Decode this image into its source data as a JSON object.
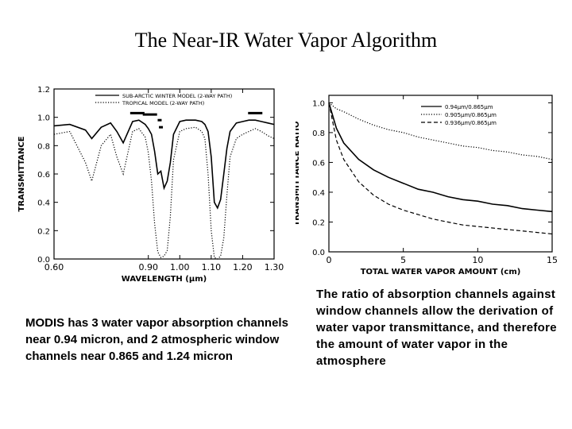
{
  "slide": {
    "title": "The Near-IR Water Vapor Algorithm",
    "caption_left": "MODIS has 3 water vapor absorption channels near 0.94 micron, and 2 atmospheric window channels near 0.865 and 1.24 micron",
    "caption_right": "The ratio of absorption channels against window channels allow the derivation of water vapor transmittance, and therefore the amount of water vapor in the atmosphere"
  },
  "chart_data": [
    {
      "type": "line",
      "xlabel": "WAVELENGTH (μm)",
      "ylabel": "TRANSMITTANCE",
      "xlim": [
        0.6,
        1.3
      ],
      "ylim": [
        0.0,
        1.2
      ],
      "xticks": [
        "0.60",
        "0.90",
        "1.00",
        "1.10",
        "1.20",
        "1.30"
      ],
      "xtick_values": [
        0.6,
        0.9,
        1.0,
        1.1,
        1.2,
        1.3
      ],
      "yticks": [
        "0.0",
        "0.2",
        "0.4",
        "0.6",
        "0.8",
        "1.0",
        "1.2"
      ],
      "ytick_values": [
        0.0,
        0.2,
        0.4,
        0.6,
        0.8,
        1.0,
        1.2
      ],
      "legend_position": "top",
      "series": [
        {
          "name": "SUB-ARCTIC WINTER MODEL (2-WAY PATH)",
          "style": "solid",
          "x": [
            0.6,
            0.65,
            0.7,
            0.72,
            0.75,
            0.78,
            0.8,
            0.82,
            0.85,
            0.87,
            0.89,
            0.9,
            0.91,
            0.92,
            0.93,
            0.94,
            0.95,
            0.96,
            0.97,
            0.98,
            1.0,
            1.02,
            1.05,
            1.07,
            1.08,
            1.09,
            1.1,
            1.11,
            1.12,
            1.13,
            1.14,
            1.15,
            1.16,
            1.18,
            1.2,
            1.22,
            1.24,
            1.26,
            1.28,
            1.3
          ],
          "y": [
            0.94,
            0.95,
            0.91,
            0.85,
            0.93,
            0.96,
            0.9,
            0.82,
            0.97,
            0.98,
            0.95,
            0.92,
            0.88,
            0.76,
            0.6,
            0.62,
            0.5,
            0.55,
            0.68,
            0.88,
            0.97,
            0.98,
            0.98,
            0.97,
            0.95,
            0.9,
            0.72,
            0.4,
            0.36,
            0.42,
            0.6,
            0.78,
            0.9,
            0.96,
            0.97,
            0.98,
            0.98,
            0.97,
            0.96,
            0.95
          ]
        },
        {
          "name": "TROPICAL MODEL (2-WAY PATH)",
          "style": "dotted",
          "x": [
            0.6,
            0.65,
            0.7,
            0.72,
            0.75,
            0.78,
            0.8,
            0.82,
            0.85,
            0.87,
            0.89,
            0.9,
            0.91,
            0.92,
            0.93,
            0.94,
            0.95,
            0.96,
            0.97,
            0.98,
            1.0,
            1.02,
            1.05,
            1.07,
            1.08,
            1.09,
            1.1,
            1.11,
            1.12,
            1.13,
            1.14,
            1.15,
            1.16,
            1.18,
            1.2,
            1.22,
            1.24,
            1.26,
            1.28,
            1.3
          ],
          "y": [
            0.88,
            0.9,
            0.68,
            0.55,
            0.8,
            0.88,
            0.72,
            0.6,
            0.9,
            0.92,
            0.86,
            0.75,
            0.55,
            0.25,
            0.05,
            0.01,
            0.02,
            0.06,
            0.3,
            0.7,
            0.9,
            0.92,
            0.93,
            0.9,
            0.85,
            0.6,
            0.2,
            0.01,
            0.0,
            0.02,
            0.15,
            0.45,
            0.72,
            0.85,
            0.88,
            0.9,
            0.92,
            0.9,
            0.87,
            0.85
          ]
        }
      ],
      "channel_marks": [
        {
          "center": 0.865,
          "y": 1.03
        },
        {
          "center": 0.905,
          "y": 1.02
        },
        {
          "center": 0.936,
          "y": 0.98
        },
        {
          "center": 0.94,
          "y": 0.93
        },
        {
          "center": 1.24,
          "y": 1.03
        }
      ]
    },
    {
      "type": "line",
      "xlabel": "TOTAL WATER VAPOR AMOUNT (cm)",
      "ylabel": "TRANSMITTANCE RATIO",
      "xlim": [
        0,
        15
      ],
      "ylim": [
        0.0,
        1.05
      ],
      "xticks": [
        "0",
        "5",
        "10",
        "15"
      ],
      "xtick_values": [
        0,
        5,
        10,
        15
      ],
      "yticks": [
        "0.0",
        "0.2",
        "0.4",
        "0.6",
        "0.8",
        "1.0"
      ],
      "ytick_values": [
        0.0,
        0.2,
        0.4,
        0.6,
        0.8,
        1.0
      ],
      "legend_position": "top-right",
      "series": [
        {
          "name": "0.94μm/0.865μm",
          "style": "solid",
          "x": [
            0,
            0.5,
            1,
            2,
            3,
            4,
            5,
            6,
            7,
            8,
            9,
            10,
            11,
            12,
            13,
            14,
            15
          ],
          "y": [
            1.0,
            0.83,
            0.73,
            0.62,
            0.55,
            0.5,
            0.46,
            0.42,
            0.4,
            0.37,
            0.35,
            0.34,
            0.32,
            0.31,
            0.29,
            0.28,
            0.27
          ]
        },
        {
          "name": "0.905μm/0.865μm",
          "style": "dotted",
          "x": [
            0,
            0.5,
            1,
            2,
            3,
            4,
            5,
            6,
            7,
            8,
            9,
            10,
            11,
            12,
            13,
            14,
            15
          ],
          "y": [
            1.0,
            0.96,
            0.94,
            0.89,
            0.85,
            0.82,
            0.8,
            0.77,
            0.75,
            0.73,
            0.71,
            0.7,
            0.68,
            0.67,
            0.65,
            0.64,
            0.62
          ]
        },
        {
          "name": "0.936μm/0.865μm",
          "style": "dashed",
          "x": [
            0,
            0.5,
            1,
            2,
            3,
            4,
            5,
            6,
            7,
            8,
            9,
            10,
            11,
            12,
            13,
            14,
            15
          ],
          "y": [
            1.0,
            0.75,
            0.62,
            0.47,
            0.38,
            0.32,
            0.28,
            0.25,
            0.22,
            0.2,
            0.18,
            0.17,
            0.16,
            0.15,
            0.14,
            0.13,
            0.12
          ]
        }
      ]
    }
  ]
}
